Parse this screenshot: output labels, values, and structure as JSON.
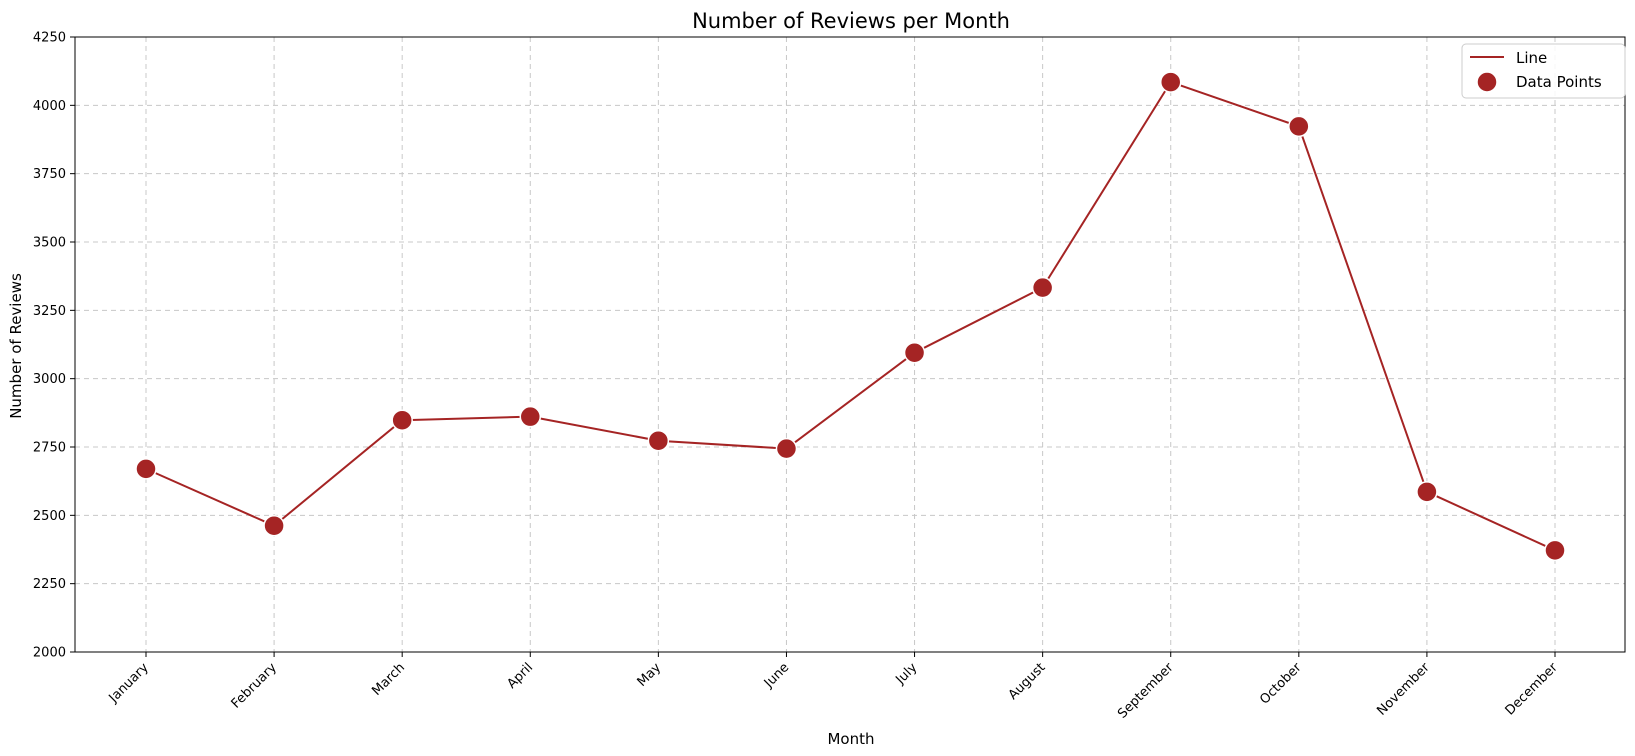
{
  "chart_data": {
    "type": "line",
    "title": "Number of Reviews per Month",
    "xlabel": "Month",
    "ylabel": "Number of Reviews",
    "categories": [
      "January",
      "February",
      "March",
      "April",
      "May",
      "June",
      "July",
      "August",
      "September",
      "October",
      "November",
      "December"
    ],
    "series": [
      {
        "name": "Line",
        "kind": "line",
        "color": "#a52424",
        "values": [
          2670,
          2462,
          2848,
          2861,
          2773,
          2744,
          3095,
          3333,
          4085,
          3923,
          2586,
          2372
        ]
      },
      {
        "name": "Data Points",
        "kind": "markers",
        "color": "#a52424",
        "values": [
          2670,
          2462,
          2848,
          2861,
          2773,
          2744,
          3095,
          3333,
          4085,
          3923,
          2586,
          2372
        ]
      }
    ],
    "ylim": [
      2000,
      4250
    ],
    "yticks": [
      2000,
      2250,
      2500,
      2750,
      3000,
      3250,
      3500,
      3750,
      4000,
      4250
    ],
    "grid": true,
    "legend_position": "top-right"
  }
}
